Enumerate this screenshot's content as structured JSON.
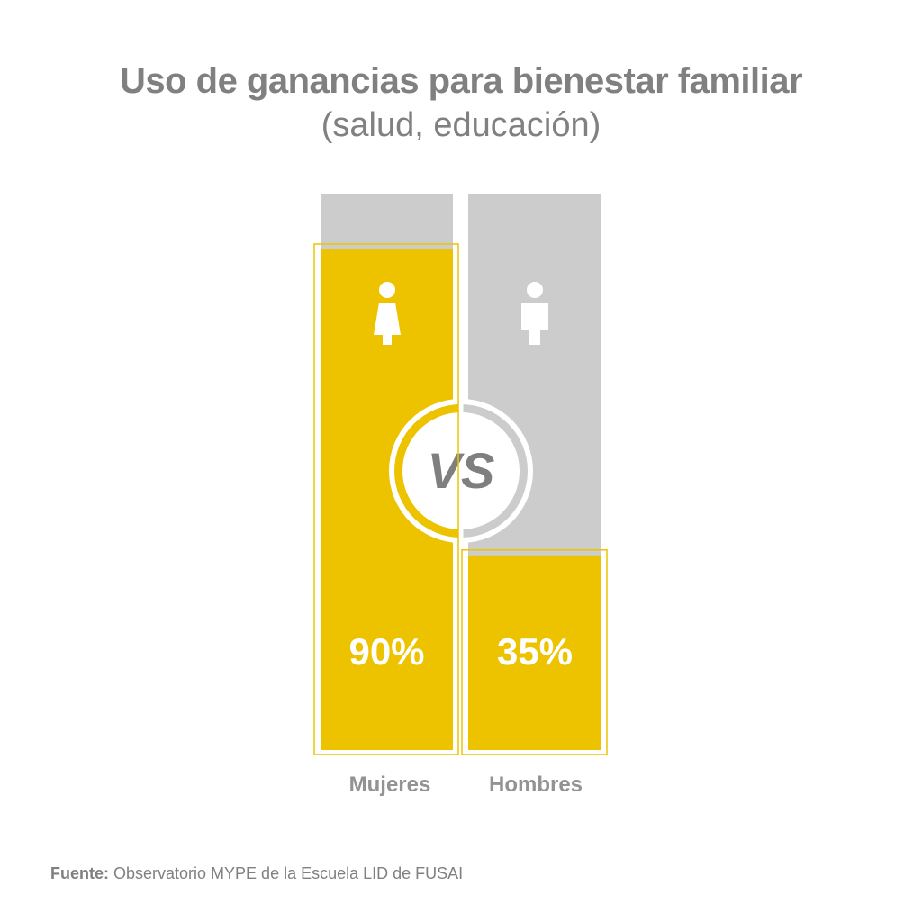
{
  "chart_data": {
    "type": "bar",
    "title": "Uso de ganancias para bienestar familiar",
    "subtitle": "(salud, educación)",
    "categories": [
      "Mujeres",
      "Hombres"
    ],
    "values": [
      90,
      35
    ],
    "data_labels": [
      "90%",
      "35%"
    ],
    "ylim": [
      0,
      100
    ],
    "icons": [
      "woman-icon",
      "man-icon"
    ],
    "center_label": "VS",
    "grid": false,
    "colors": {
      "fill": "#EDC300",
      "track": "#CCCCCC",
      "text": "#808080",
      "vs_text": "#7F7F7F"
    }
  },
  "source": {
    "label": "Fuente:",
    "text": " Observatorio MYPE de la Escuela LID de FUSAI"
  }
}
